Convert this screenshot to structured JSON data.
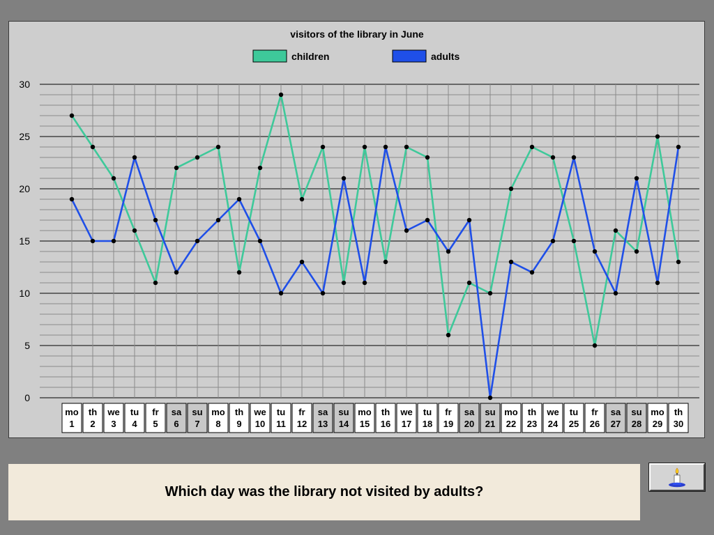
{
  "question": "Which day was the library not visited by adults?",
  "hint_button": {
    "icon": "candle-icon"
  },
  "colors": {
    "background": "#808080",
    "panel": "#cecece",
    "children": "#3ec99a",
    "adults": "#1f4fe8",
    "weekend_label": "#c8c8c8",
    "weekday_label": "#ffffff",
    "question_bg": "#f2eadb"
  },
  "chart_data": {
    "type": "line",
    "title": "visitors of the library in June",
    "ylim": [
      0,
      30
    ],
    "ytick_step": 5,
    "grid": true,
    "legend_position": "top",
    "categories": [
      {
        "day": "mo",
        "date": "1",
        "weekend": false
      },
      {
        "day": "th",
        "date": "2",
        "weekend": false
      },
      {
        "day": "we",
        "date": "3",
        "weekend": false
      },
      {
        "day": "tu",
        "date": "4",
        "weekend": false
      },
      {
        "day": "fr",
        "date": "5",
        "weekend": false
      },
      {
        "day": "sa",
        "date": "6",
        "weekend": true
      },
      {
        "day": "su",
        "date": "7",
        "weekend": true
      },
      {
        "day": "mo",
        "date": "8",
        "weekend": false
      },
      {
        "day": "th",
        "date": "9",
        "weekend": false
      },
      {
        "day": "we",
        "date": "10",
        "weekend": false
      },
      {
        "day": "tu",
        "date": "11",
        "weekend": false
      },
      {
        "day": "fr",
        "date": "12",
        "weekend": false
      },
      {
        "day": "sa",
        "date": "13",
        "weekend": true
      },
      {
        "day": "su",
        "date": "14",
        "weekend": true
      },
      {
        "day": "mo",
        "date": "15",
        "weekend": false
      },
      {
        "day": "th",
        "date": "16",
        "weekend": false
      },
      {
        "day": "we",
        "date": "17",
        "weekend": false
      },
      {
        "day": "tu",
        "date": "18",
        "weekend": false
      },
      {
        "day": "fr",
        "date": "19",
        "weekend": false
      },
      {
        "day": "sa",
        "date": "20",
        "weekend": true
      },
      {
        "day": "su",
        "date": "21",
        "weekend": true
      },
      {
        "day": "mo",
        "date": "22",
        "weekend": false
      },
      {
        "day": "th",
        "date": "23",
        "weekend": false
      },
      {
        "day": "we",
        "date": "24",
        "weekend": false
      },
      {
        "day": "tu",
        "date": "25",
        "weekend": false
      },
      {
        "day": "fr",
        "date": "26",
        "weekend": false
      },
      {
        "day": "sa",
        "date": "27",
        "weekend": true
      },
      {
        "day": "su",
        "date": "28",
        "weekend": true
      },
      {
        "day": "mo",
        "date": "29",
        "weekend": false
      },
      {
        "day": "th",
        "date": "30",
        "weekend": false
      }
    ],
    "series": [
      {
        "name": "children",
        "color": "#3ec99a",
        "values": [
          27,
          24,
          21,
          16,
          11,
          22,
          23,
          24,
          12,
          22,
          29,
          19,
          24,
          11,
          24,
          13,
          24,
          23,
          6,
          11,
          10,
          20,
          24,
          23,
          15,
          5,
          16,
          14,
          25,
          13
        ]
      },
      {
        "name": "adults",
        "color": "#1f4fe8",
        "values": [
          19,
          15,
          15,
          23,
          17,
          12,
          15,
          17,
          19,
          15,
          10,
          13,
          10,
          21,
          11,
          24,
          16,
          17,
          14,
          17,
          0,
          13,
          12,
          15,
          23,
          14,
          10,
          21,
          11,
          24
        ]
      }
    ]
  }
}
